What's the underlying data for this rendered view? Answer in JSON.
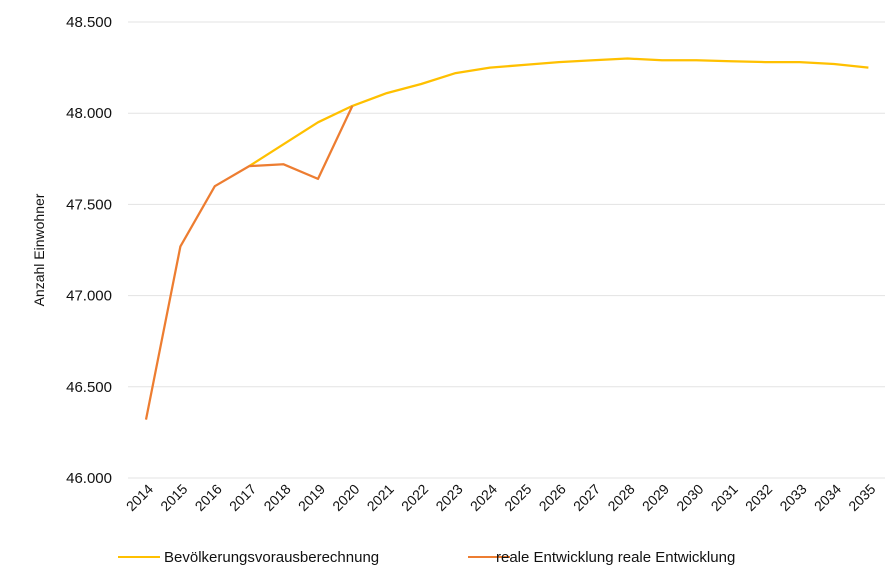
{
  "chart_data": {
    "type": "line",
    "title": "",
    "xlabel": "",
    "ylabel": "Anzahl Einwohner",
    "x": [
      "2014",
      "2015",
      "2016",
      "2017",
      "2018",
      "2019",
      "2020",
      "2021",
      "2022",
      "2023",
      "2024",
      "2025",
      "2026",
      "2027",
      "2028",
      "2029",
      "2030",
      "2031",
      "2032",
      "2033",
      "2034",
      "2035"
    ],
    "ylim": [
      46000,
      48500
    ],
    "yticks": [
      46000,
      46500,
      47000,
      47500,
      48000,
      48500
    ],
    "ytick_labels": [
      "46.000",
      "46.500",
      "47.000",
      "47.500",
      "48.000",
      "48.500"
    ],
    "grid": "horizontal",
    "legend_position": "bottom",
    "series": [
      {
        "name": "Bevölkerungsvorausberechnung",
        "color": "#FFC000",
        "values": [
          null,
          null,
          null,
          47710,
          47830,
          47950,
          48040,
          48110,
          48160,
          48220,
          48250,
          48265,
          48280,
          48290,
          48300,
          48290,
          48290,
          48285,
          48280,
          48280,
          48270,
          48250
        ]
      },
      {
        "name": "reale Entwicklung reale Entwicklung",
        "color": "#ED7D31",
        "values": [
          46320,
          47270,
          47600,
          47710,
          47720,
          47640,
          48040,
          null,
          null,
          null,
          null,
          null,
          null,
          null,
          null,
          null,
          null,
          null,
          null,
          null,
          null,
          null
        ]
      }
    ]
  }
}
